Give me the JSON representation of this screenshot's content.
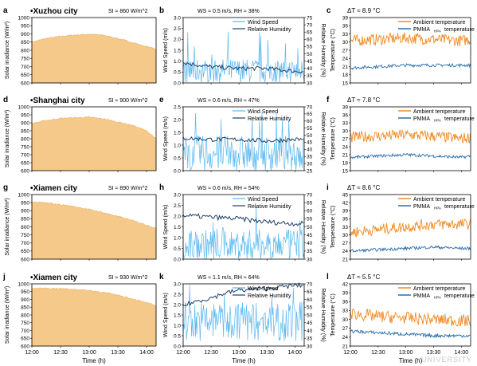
{
  "colors": {
    "solar": "#f5c98a",
    "solar_line": "#ecb062",
    "wind": "#5bb8f0",
    "humidity": "#1f3f66",
    "ambient": "#f08a24",
    "pmma": "#2a6ea8",
    "axis": "#000000"
  },
  "time_ticks": [
    "12:00",
    "12:30",
    "13:00",
    "13:30",
    "14:00"
  ],
  "x_label": "Time (h)",
  "watermark": "UNIVERSITY",
  "chart_data": [
    {
      "panel": "a",
      "type": "area",
      "title": "•Xuzhou city",
      "annotation": "SI ≈ 860 W/m^2",
      "ylabel": "Solar irradiance (W/m²)",
      "ylim": [
        600,
        1000
      ],
      "yticks": [
        600,
        650,
        700,
        750,
        800,
        850,
        900,
        950,
        1000
      ],
      "x": [
        "12:00",
        "12:15",
        "12:30",
        "12:45",
        "13:00",
        "13:15",
        "13:30",
        "13:45",
        "14:00",
        "14:10"
      ],
      "values": [
        850,
        872,
        885,
        893,
        898,
        892,
        872,
        848,
        822,
        808
      ]
    },
    {
      "panel": "b",
      "type": "line",
      "title": "WS ≈ 0.5 m/s, RH ≈ 38%",
      "ylabel": "Wind Speed (m/s)",
      "ylim": [
        0,
        3.0
      ],
      "yticks": [
        0,
        0.5,
        1.0,
        1.5,
        2.0,
        2.5,
        3.0
      ],
      "ylabel_right": "Relative Humidity (%)",
      "ylim_right": [
        30,
        75
      ],
      "yticks_right": [
        30,
        35,
        40,
        45,
        50,
        55,
        60,
        65,
        70,
        75
      ],
      "legend": [
        "Wind Speed",
        "Relative Humidity"
      ],
      "series": [
        {
          "name": "Wind Speed",
          "axis": "left",
          "mean": 0.5,
          "amp": 0.7,
          "peak": 2.4
        },
        {
          "name": "Relative Humidity",
          "axis": "right",
          "x": [
            "12:00",
            "12:30",
            "13:00",
            "13:30",
            "14:00",
            "14:10"
          ],
          "values": [
            44,
            41,
            40,
            40,
            38,
            38
          ]
        }
      ]
    },
    {
      "panel": "c",
      "type": "line",
      "title": "ΔT ≈ 8.9 °C",
      "ylabel": "Temperature (°C)",
      "ylim": [
        15,
        39
      ],
      "yticks": [
        15,
        18,
        21,
        24,
        27,
        30,
        33,
        36,
        39
      ],
      "legend": [
        "Ambient temperature",
        "PMMA",
        "HPA",
        "temperature"
      ],
      "series": [
        {
          "name": "Ambient temperature",
          "x": [
            "12:00",
            "12:30",
            "13:00",
            "13:30",
            "14:00",
            "14:10"
          ],
          "values": [
            30.5,
            31,
            31.5,
            31,
            30.5,
            31
          ]
        },
        {
          "name": "PMMA HPA temperature",
          "x": [
            "12:00",
            "12:30",
            "13:00",
            "13:30",
            "14:00",
            "14:10"
          ],
          "values": [
            20.5,
            21,
            21.5,
            21.5,
            21.5,
            21.5
          ]
        }
      ]
    },
    {
      "panel": "d",
      "type": "area",
      "title": "•Shanghai city",
      "annotation": "SI ≈ 900 W/m^2",
      "ylabel": "Solar irradiance (W/m²)",
      "ylim": [
        600,
        1000
      ],
      "yticks": [
        600,
        650,
        700,
        750,
        800,
        850,
        900,
        950,
        1000
      ],
      "x": [
        "12:00",
        "12:15",
        "12:30",
        "12:45",
        "13:00",
        "13:15",
        "13:30",
        "13:45",
        "14:00",
        "14:10"
      ],
      "values": [
        895,
        915,
        928,
        932,
        935,
        925,
        905,
        885,
        850,
        800
      ]
    },
    {
      "panel": "e",
      "type": "line",
      "title": "WS ≈ 0.6 m/s, RH ≈ 47%",
      "ylabel": "Wind Speed (m/s)",
      "ylim": [
        0,
        2.5
      ],
      "yticks": [
        0,
        0.5,
        1.0,
        1.5,
        2.0,
        2.5
      ],
      "ylabel_right": "Relative Humidity (%)",
      "ylim_right": [
        25,
        70
      ],
      "yticks_right": [
        25,
        30,
        35,
        40,
        45,
        50,
        55,
        60,
        65,
        70
      ],
      "legend": [
        "Wind Speed",
        "Relative Humidity"
      ],
      "series": [
        {
          "name": "Wind Speed",
          "axis": "left",
          "mean": 0.6,
          "amp": 0.9,
          "peak": 2.3
        },
        {
          "name": "Relative Humidity",
          "axis": "right",
          "x": [
            "12:00",
            "12:30",
            "13:00",
            "13:30",
            "14:00",
            "14:10"
          ],
          "values": [
            48,
            47,
            47,
            46,
            47,
            47
          ]
        }
      ]
    },
    {
      "panel": "f",
      "type": "line",
      "title": "ΔT ≈ 7.8 °C",
      "ylabel": "Temperature (°C)",
      "ylim": [
        15,
        39
      ],
      "yticks": [
        15,
        18,
        21,
        24,
        27,
        30,
        33,
        36,
        39
      ],
      "legend": [
        "Ambient temperature",
        "PMMA",
        "HPA",
        "temperature"
      ],
      "series": [
        {
          "name": "Ambient temperature",
          "x": [
            "12:00",
            "12:30",
            "13:00",
            "13:30",
            "14:00",
            "14:10"
          ],
          "values": [
            27.5,
            28,
            28.5,
            28,
            27,
            27.5
          ]
        },
        {
          "name": "PMMA HPA temperature",
          "x": [
            "12:00",
            "12:30",
            "13:00",
            "13:30",
            "14:00",
            "14:10"
          ],
          "values": [
            20,
            20.5,
            21,
            20.5,
            20,
            20.5
          ]
        }
      ]
    },
    {
      "panel": "g",
      "type": "area",
      "title": "•Xiamen city",
      "annotation": "SI ≈ 890 W/m^2",
      "ylabel": "Solar irradiance (W/m²)",
      "ylim": [
        600,
        1000
      ],
      "yticks": [
        600,
        650,
        700,
        750,
        800,
        850,
        900,
        950,
        1000
      ],
      "x": [
        "12:00",
        "12:15",
        "12:30",
        "12:45",
        "13:00",
        "13:15",
        "13:30",
        "13:45",
        "14:00",
        "14:10"
      ],
      "values": [
        955,
        948,
        938,
        925,
        908,
        888,
        865,
        840,
        812,
        790
      ]
    },
    {
      "panel": "h",
      "type": "line",
      "title": "WS ≈ 0.6 m/s, RH ≈ 54%",
      "ylabel": "Wind Speed (m/s)",
      "ylim": [
        0,
        3.0
      ],
      "yticks": [
        0,
        0.5,
        1.0,
        1.5,
        2.0,
        2.5,
        3.0
      ],
      "ylabel_right": "Relative Humidity (%)",
      "ylim_right": [
        30,
        70
      ],
      "yticks_right": [
        30,
        35,
        40,
        45,
        50,
        55,
        60,
        65,
        70
      ],
      "legend": [
        "Wind Speed",
        "Relative Humidity"
      ],
      "series": [
        {
          "name": "Wind Speed",
          "axis": "left",
          "mean": 0.6,
          "amp": 0.9,
          "peak": 2.5
        },
        {
          "name": "Relative Humidity",
          "axis": "right",
          "x": [
            "12:00",
            "12:30",
            "13:00",
            "13:30",
            "14:00",
            "14:10"
          ],
          "values": [
            57,
            56,
            55,
            53,
            52,
            52
          ]
        }
      ]
    },
    {
      "panel": "i",
      "type": "line",
      "title": "ΔT ≈ 8.6 °C",
      "ylabel": "Temperature (°C)",
      "ylim": [
        21,
        45
      ],
      "yticks": [
        21,
        24,
        27,
        30,
        33,
        36,
        39,
        42,
        45
      ],
      "legend": [
        "Ambient temperature",
        "PMMA",
        "HPA",
        "temperature"
      ],
      "series": [
        {
          "name": "Ambient temperature",
          "x": [
            "12:00",
            "12:30",
            "13:00",
            "13:30",
            "14:00",
            "14:10"
          ],
          "values": [
            31,
            32,
            33,
            34,
            34,
            34
          ]
        },
        {
          "name": "PMMA HPA temperature",
          "x": [
            "12:00",
            "12:30",
            "13:00",
            "13:30",
            "14:00",
            "14:10"
          ],
          "values": [
            24,
            24.5,
            25,
            25.5,
            25,
            25
          ]
        }
      ]
    },
    {
      "panel": "j",
      "type": "area",
      "title": "•Xiamen city",
      "annotation": "SI ≈ 930 W/m^2",
      "ylabel": "Solar irradiance (W/m²)",
      "ylim": [
        600,
        1000
      ],
      "yticks": [
        600,
        650,
        700,
        750,
        800,
        850,
        900,
        950,
        1000
      ],
      "x": [
        "12:00",
        "12:15",
        "12:30",
        "12:45",
        "13:00",
        "13:15",
        "13:30",
        "13:45",
        "14:00",
        "14:10"
      ],
      "values": [
        970,
        972,
        970,
        965,
        958,
        945,
        928,
        905,
        878,
        860
      ]
    },
    {
      "panel": "k",
      "type": "line",
      "title": "WS ≈ 1.1 m/s, RH ≈ 64%",
      "ylabel": "Wind Speed (m/s)",
      "ylim": [
        0,
        3.0
      ],
      "yticks": [
        0,
        0.5,
        1.0,
        1.5,
        2.0,
        2.5,
        3.0
      ],
      "ylabel_right": "Relative Humidity (%)",
      "ylim_right": [
        30,
        70
      ],
      "yticks_right": [
        30,
        35,
        40,
        45,
        50,
        55,
        60,
        65,
        70
      ],
      "legend": [
        "Wind Speed",
        "Relative Humidity"
      ],
      "series": [
        {
          "name": "Wind Speed",
          "axis": "left",
          "mean": 1.1,
          "amp": 1.2,
          "peak": 3.0
        },
        {
          "name": "Relative Humidity",
          "axis": "right",
          "x": [
            "12:00",
            "12:15",
            "12:30",
            "12:45",
            "13:00",
            "13:30",
            "14:00",
            "14:10"
          ],
          "values": [
            56,
            59,
            61,
            64,
            66,
            67,
            69,
            69
          ]
        }
      ]
    },
    {
      "panel": "l",
      "type": "line",
      "title": "ΔT ≈ 5.5 °C",
      "ylabel": "Temperature (°C)",
      "ylim": [
        21,
        42
      ],
      "yticks": [
        21,
        24,
        27,
        30,
        33,
        36,
        39,
        42
      ],
      "legend": [
        "Ambient temperature",
        "PMMA",
        "HPA",
        "temperature"
      ],
      "series": [
        {
          "name": "Ambient temperature",
          "x": [
            "12:00",
            "12:30",
            "13:00",
            "13:30",
            "14:00",
            "14:10"
          ],
          "values": [
            32,
            31,
            30.5,
            30,
            29.5,
            29.5
          ]
        },
        {
          "name": "PMMA HPA temperature",
          "x": [
            "12:00",
            "12:30",
            "13:00",
            "13:30",
            "14:00",
            "14:10"
          ],
          "values": [
            26,
            25.5,
            25,
            24.5,
            24.5,
            24.5
          ]
        }
      ]
    }
  ]
}
